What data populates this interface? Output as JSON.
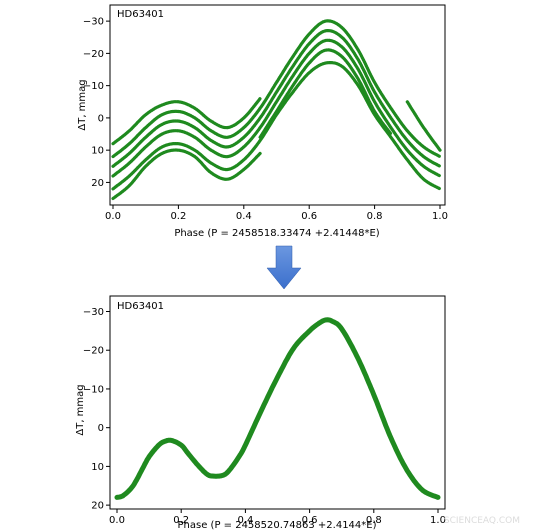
{
  "colors": {
    "series": "#1f8a1f",
    "arrow_top": "#6b97e0",
    "arrow_bottom": "#3b6fcc"
  },
  "watermark": "SCIENCEAQ.COM",
  "chart_data": [
    {
      "type": "scatter",
      "annotation": "HD63401",
      "xlabel": "Phase (P = 2458518.33474 +2.41448*E)",
      "ylabel": "ΔT, mmag",
      "xlim": [
        0.0,
        1.0
      ],
      "ylim": [
        27,
        -35
      ],
      "y_inverted": true,
      "xticks": [
        0.0,
        0.2,
        0.4,
        0.6,
        0.8,
        1.0
      ],
      "xtick_labels": [
        "0.0",
        "0.2",
        "0.4",
        "0.6",
        "0.8",
        "1.0"
      ],
      "yticks": [
        -30,
        -20,
        -10,
        0,
        10,
        20
      ],
      "ytick_labels": [
        "−30",
        "−20",
        "−10",
        "0",
        "10",
        "20"
      ],
      "series_style": "dense-scatter",
      "series": [
        {
          "x": [
            0.0,
            0.05,
            0.1,
            0.15,
            0.2,
            0.25,
            0.3,
            0.35,
            0.4,
            0.45,
            0.5,
            0.55,
            0.6,
            0.65,
            0.7,
            0.75,
            0.8,
            0.85,
            0.9,
            0.95,
            1.0
          ],
          "y": [
            18,
            14,
            9,
            5,
            4,
            6,
            10,
            12,
            9,
            3,
            -5,
            -13,
            -20,
            -24,
            -22,
            -15,
            -5,
            3,
            10,
            15,
            18
          ]
        },
        {
          "x": [
            0.0,
            0.05,
            0.1,
            0.15,
            0.2,
            0.25,
            0.3,
            0.35,
            0.4,
            0.45,
            0.5,
            0.55,
            0.6,
            0.65,
            0.7,
            0.75,
            0.8,
            0.85,
            0.9,
            0.95,
            1.0
          ],
          "y": [
            15,
            11,
            6,
            2,
            1,
            3,
            7,
            9,
            6,
            0,
            -8,
            -16,
            -23,
            -27,
            -25,
            -18,
            -8,
            0,
            7,
            12,
            15
          ]
        },
        {
          "x": [
            0.0,
            0.05,
            0.1,
            0.15,
            0.2,
            0.25,
            0.3,
            0.35,
            0.4,
            0.45,
            0.5,
            0.55,
            0.6,
            0.65,
            0.7,
            0.75,
            0.8,
            0.85,
            0.9,
            0.95,
            1.0
          ],
          "y": [
            12,
            8,
            3,
            -1,
            -2,
            0,
            4,
            6,
            3,
            -3,
            -11,
            -19,
            -26,
            -30,
            -28,
            -21,
            -11,
            -3,
            4,
            9,
            12
          ]
        },
        {
          "x": [
            0.0,
            0.05,
            0.1,
            0.15,
            0.2,
            0.25,
            0.3,
            0.35,
            0.4,
            0.45,
            0.5,
            0.55,
            0.6,
            0.65,
            0.7,
            0.75,
            0.8,
            0.85,
            0.9,
            0.95,
            1.0
          ],
          "y": [
            22,
            18,
            13,
            9,
            8,
            10,
            14,
            16,
            13,
            7,
            -1,
            -8,
            -14,
            -17,
            -16,
            -10,
            -1,
            6,
            13,
            19,
            22
          ]
        },
        {
          "x": [
            0.0,
            0.05,
            0.1,
            0.15,
            0.2,
            0.25,
            0.3,
            0.35,
            0.4,
            0.45
          ],
          "y": [
            25,
            21,
            15,
            11,
            10,
            12,
            17,
            19,
            16,
            11
          ]
        },
        {
          "x": [
            0.0,
            0.05,
            0.1,
            0.15,
            0.2,
            0.25,
            0.3,
            0.35,
            0.4,
            0.45
          ],
          "y": [
            8,
            4,
            -1,
            -4,
            -5,
            -3,
            1,
            3,
            0,
            -6
          ]
        },
        {
          "x": [
            0.9,
            0.95,
            1.0
          ],
          "y": [
            -5,
            3,
            10
          ]
        },
        {
          "x": [
            0.45,
            0.5,
            0.55,
            0.6,
            0.65,
            0.7,
            0.75,
            0.8,
            0.85
          ],
          "y": [
            6,
            -2,
            -10,
            -17,
            -21,
            -19,
            -12,
            -2,
            5
          ]
        }
      ]
    },
    {
      "type": "line",
      "annotation": "HD63401",
      "xlabel": "Phase (P = 2458520.74863 +2.4144*E)",
      "ylabel": "ΔT, mmag",
      "xlim": [
        0.0,
        1.0
      ],
      "ylim": [
        21,
        -34
      ],
      "y_inverted": true,
      "xticks": [
        0.0,
        0.2,
        0.4,
        0.6,
        0.8,
        1.0
      ],
      "xtick_labels": [
        "0.0",
        "0.2",
        "0.4",
        "0.6",
        "0.8",
        "1.0"
      ],
      "yticks": [
        -30,
        -20,
        -10,
        0,
        10,
        20
      ],
      "ytick_labels": [
        "−30",
        "−20",
        "−10",
        "0",
        "10",
        "20"
      ],
      "series": [
        {
          "x": [
            0.0,
            0.02,
            0.05,
            0.08,
            0.1,
            0.13,
            0.15,
            0.17,
            0.2,
            0.22,
            0.25,
            0.28,
            0.3,
            0.33,
            0.35,
            0.38,
            0.4,
            0.45,
            0.5,
            0.55,
            0.6,
            0.63,
            0.65,
            0.67,
            0.7,
            0.75,
            0.8,
            0.85,
            0.9,
            0.95,
            1.0
          ],
          "y": [
            18,
            17.5,
            15,
            10.5,
            7.5,
            4.5,
            3.5,
            3.3,
            4.5,
            6.5,
            9.5,
            12,
            12.5,
            12.3,
            11,
            7.5,
            4.5,
            -4.5,
            -13,
            -20.5,
            -25,
            -27,
            -27.8,
            -27.5,
            -25.5,
            -18,
            -8.5,
            2,
            10.5,
            16,
            18
          ]
        }
      ]
    }
  ]
}
